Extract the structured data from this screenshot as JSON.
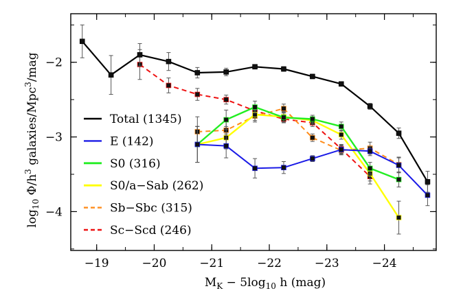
{
  "chart_data": {
    "type": "line",
    "xlabel_main": "M",
    "xlabel_sub": "K",
    "xlabel_mid": " − 5log",
    "xlabel_sub2": "10",
    "xlabel_end": " h (mag)",
    "ylabel": "log10 Φ/h^3 galaxies/Mpc^3/mag",
    "ylabel_parts": [
      "log",
      "10",
      " Φ/h",
      "3",
      " galaxies/Mpc",
      "3",
      "/mag"
    ],
    "xlim": [
      -18.55,
      -24.9
    ],
    "ylim": [
      -4.52,
      -1.35
    ],
    "xticks": [
      -19,
      -20,
      -21,
      -22,
      -23,
      -24
    ],
    "xtick_labels": [
      "−19",
      "−20",
      "−21",
      "−22",
      "−23",
      "−24"
    ],
    "yticks": [
      -2,
      -3,
      -4
    ],
    "ytick_labels": [
      "−2",
      "−3",
      "−4"
    ],
    "legend_position": "left",
    "series": [
      {
        "name": "Total (1345)",
        "color": "#000000",
        "dashed": false,
        "lw": 2.2,
        "x": [
          -18.75,
          -19.25,
          -19.75,
          -20.25,
          -20.75,
          -21.25,
          -21.75,
          -22.25,
          -22.75,
          -23.25,
          -23.75,
          -24.25,
          -24.75
        ],
        "y": [
          -1.72,
          -2.17,
          -1.9,
          -1.99,
          -2.14,
          -2.13,
          -2.06,
          -2.09,
          -2.19,
          -2.29,
          -2.59,
          -2.95,
          -3.6
        ],
        "err": [
          0.22,
          0.26,
          0.15,
          0.12,
          0.07,
          0.05,
          0.03,
          0.03,
          0.03,
          0.03,
          0.04,
          0.07,
          0.14
        ]
      },
      {
        "name": "E (142)",
        "color": "#1a1ae6",
        "dashed": false,
        "lw": 2,
        "x": [
          -20.75,
          -21.25,
          -21.75,
          -22.25,
          -22.75,
          -23.25,
          -23.75,
          -24.25,
          -24.75
        ],
        "y": [
          -3.1,
          -3.12,
          -3.42,
          -3.41,
          -3.29,
          -3.17,
          -3.19,
          -3.38,
          -3.78
        ],
        "err": [
          0.24,
          0.16,
          0.13,
          0.08,
          0.04,
          0.06,
          0.06,
          0.1,
          0.14
        ]
      },
      {
        "name": "S0 (316)",
        "color": "#22ee22",
        "dashed": false,
        "lw": 2.4,
        "x": [
          -20.75,
          -21.25,
          -21.75,
          -22.25,
          -22.75,
          -23.25,
          -23.75,
          -24.25
        ],
        "y": [
          -3.1,
          -2.77,
          -2.6,
          -2.74,
          -2.76,
          -2.86,
          -3.42,
          -3.57
        ],
        "err": [
          0.24,
          0.13,
          0.08,
          0.07,
          0.05,
          0.06,
          0.08,
          0.1
        ]
      },
      {
        "name": "S0/a−Sab (262)",
        "color": "#ffff00",
        "dashed": false,
        "lw": 2.4,
        "x": [
          -20.75,
          -21.25,
          -21.75,
          -22.25,
          -22.75,
          -23.25,
          -23.75,
          -24.25
        ],
        "y": [
          -3.1,
          -3.01,
          -2.7,
          -2.73,
          -2.78,
          -2.97,
          -3.49,
          -4.08
        ],
        "err": [
          0.24,
          0.15,
          0.08,
          0.07,
          0.05,
          0.06,
          0.1,
          0.22
        ]
      },
      {
        "name": "Sb−Sbc (315)",
        "color": "#ff8c1a",
        "dashed": true,
        "lw": 2,
        "x": [
          -20.75,
          -21.25,
          -21.75,
          -22.25,
          -22.75,
          -23.25,
          -23.75,
          -24.25
        ],
        "y": [
          -2.93,
          -2.91,
          -2.72,
          -2.62,
          -3.01,
          -3.18,
          -3.15,
          -3.37
        ],
        "err": [
          0.2,
          0.12,
          0.08,
          0.06,
          0.05,
          0.06,
          0.08,
          0.1
        ]
      },
      {
        "name": "Sc−Scd (246)",
        "color": "#ee1111",
        "dashed": true,
        "lw": 2,
        "x": [
          -19.75,
          -20.25,
          -20.75,
          -21.25,
          -21.75,
          -22.25,
          -22.75,
          -23.25,
          -23.75
        ],
        "y": [
          -2.03,
          -2.31,
          -2.43,
          -2.5,
          -2.65,
          -2.76,
          -2.81,
          -3.16,
          -3.53
        ],
        "err": [
          0.2,
          0.1,
          0.08,
          0.06,
          0.05,
          0.05,
          0.05,
          0.06,
          0.1
        ]
      }
    ]
  }
}
